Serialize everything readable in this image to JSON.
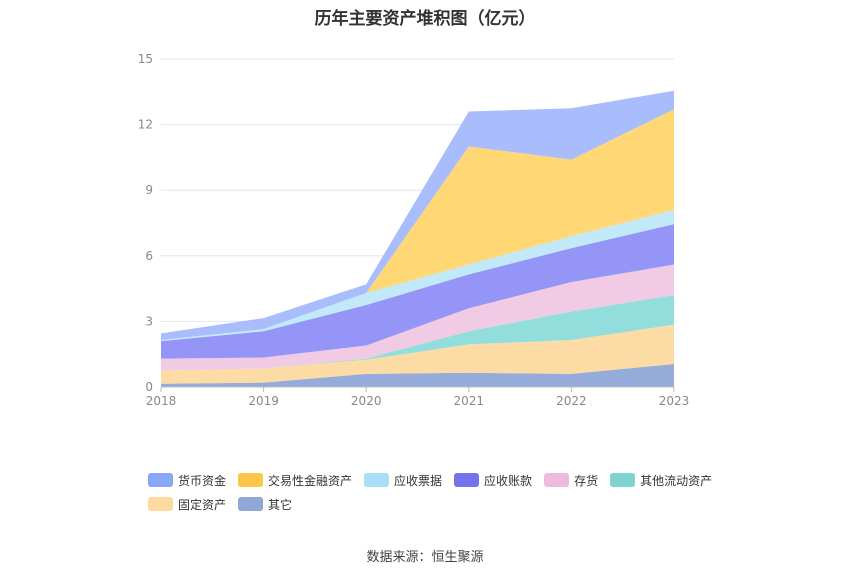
{
  "chart_data": {
    "type": "area",
    "stacked": true,
    "title": "历年主要资产堆积图（亿元）",
    "categories": [
      "2018",
      "2019",
      "2020",
      "2021",
      "2022",
      "2023"
    ],
    "ylim": [
      0,
      15
    ],
    "yticks": [
      0,
      3,
      6,
      9,
      12,
      15
    ],
    "grid": true,
    "legend_position": "bottom",
    "series": [
      {
        "name": "其它",
        "color": "#8fa8d8",
        "values": [
          0.15,
          0.2,
          0.6,
          0.65,
          0.6,
          1.05
        ]
      },
      {
        "name": "固定资产",
        "color": "#fcd9a0",
        "values": [
          0.6,
          0.65,
          0.65,
          1.3,
          1.55,
          1.8
        ]
      },
      {
        "name": "其他流动资产",
        "color": "#8cdcda",
        "values": [
          0.0,
          0.0,
          0.05,
          0.6,
          1.3,
          1.35
        ]
      },
      {
        "name": "存货",
        "color": "#efc8e2",
        "values": [
          0.55,
          0.5,
          0.6,
          1.05,
          1.35,
          1.4
        ]
      },
      {
        "name": "应收账款",
        "color": "#8e8ff7",
        "values": [
          0.8,
          1.2,
          1.85,
          1.55,
          1.55,
          1.85
        ]
      },
      {
        "name": "应收票据",
        "color": "#bfe8f8",
        "values": [
          0.05,
          0.1,
          0.55,
          0.45,
          0.55,
          0.65
        ]
      },
      {
        "name": "交易性金融资产",
        "color": "#ffd56e",
        "values": [
          0.0,
          0.0,
          0.0,
          5.4,
          3.5,
          4.6
        ]
      },
      {
        "name": "货币资金",
        "color": "#a4b9fc",
        "values": [
          0.3,
          0.5,
          0.4,
          1.6,
          2.35,
          0.85
        ]
      }
    ]
  },
  "legend": [
    {
      "label": "货币资金",
      "color": "#8aa6f7"
    },
    {
      "label": "交易性金融资产",
      "color": "#fbc64a"
    },
    {
      "label": "应收票据",
      "color": "#a9def6"
    },
    {
      "label": "应收账款",
      "color": "#7474ec"
    },
    {
      "label": "存货",
      "color": "#ebbcdc"
    },
    {
      "label": "其他流动资产",
      "color": "#7fd4d2"
    },
    {
      "label": "固定资产",
      "color": "#fdd8a0"
    },
    {
      "label": "其它",
      "color": "#8fa8d8"
    }
  ],
  "source": "数据来源：恒生聚源"
}
